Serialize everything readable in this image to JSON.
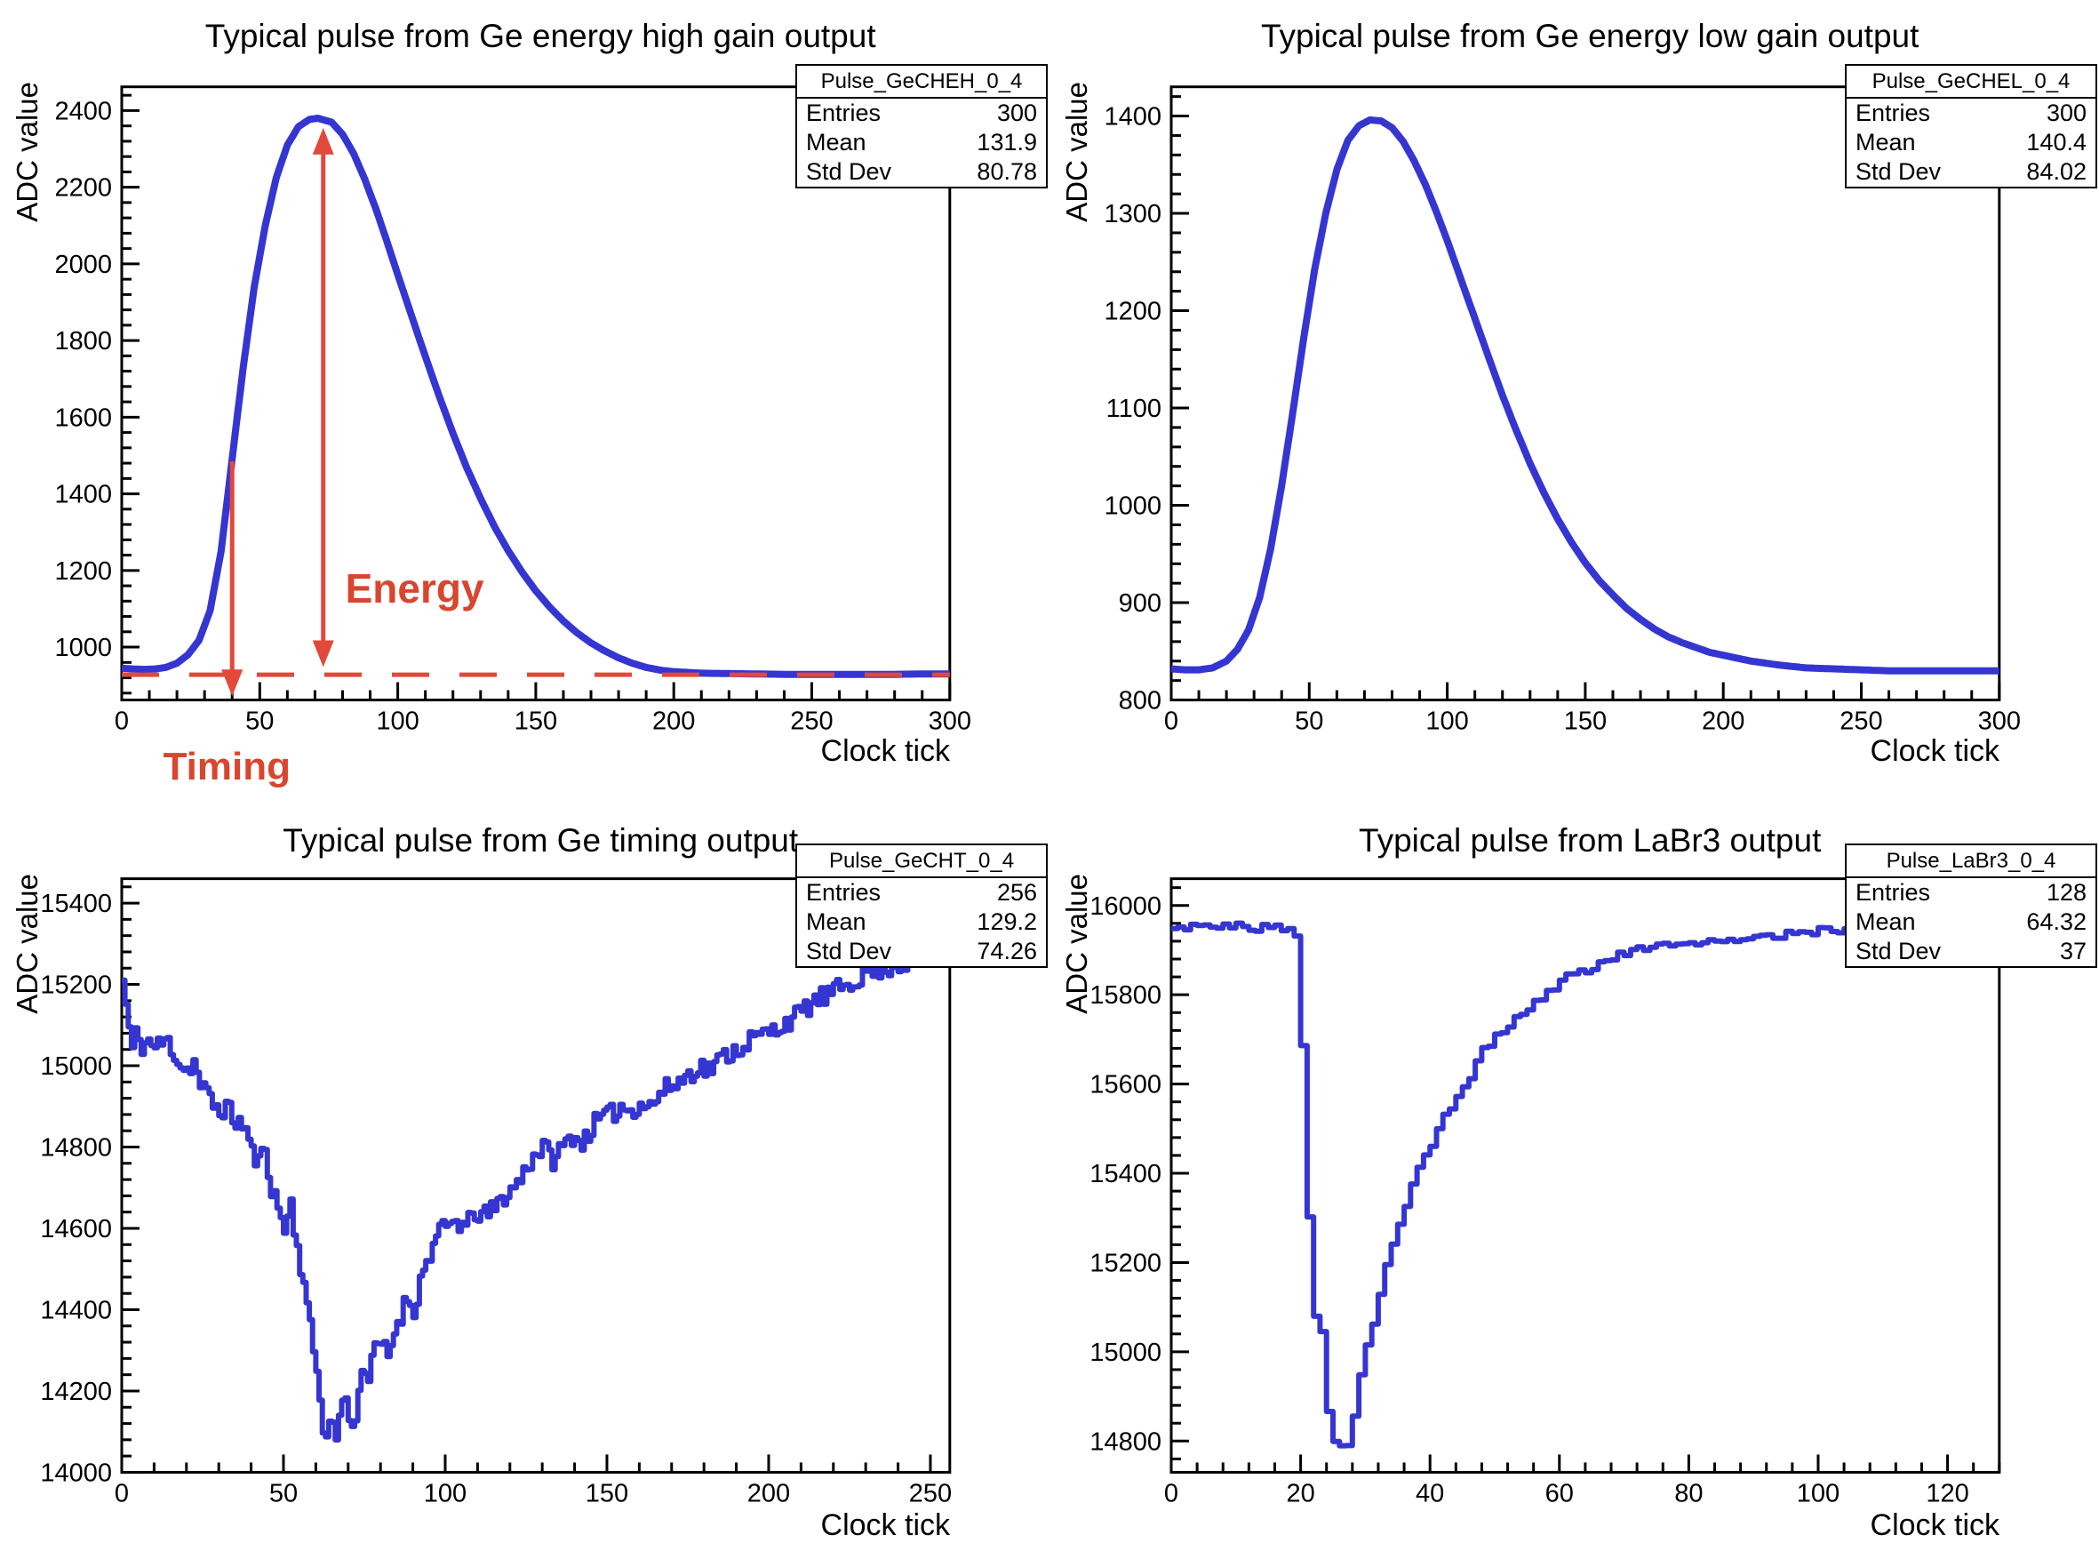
{
  "colors": {
    "curve_blue": "#3535d2",
    "annotation_red": "#d9452e",
    "arrow_red": "#e2493a",
    "axis_black": "#000000",
    "background": "#ffffff"
  },
  "chart_data": [
    {
      "id": "ge_energy_high_gain",
      "type": "line",
      "render": "smooth",
      "title": "Typical pulse from Ge energy high gain output",
      "xlabel": "Clock tick",
      "ylabel": "ADC value",
      "xlim": [
        0,
        300
      ],
      "ylim": [
        862,
        2462
      ],
      "xticks": [
        0,
        50,
        100,
        150,
        200,
        250,
        300
      ],
      "yticks": [
        1000,
        1200,
        1400,
        1600,
        1800,
        2000,
        2200,
        2400
      ],
      "x_minor_step": 10,
      "y_minor_step": 40,
      "n_samples": 300,
      "stats": {
        "name": "Pulse_GeCHEH_0_4",
        "rows": [
          {
            "label": "Entries",
            "value": "300"
          },
          {
            "label": "Mean",
            "value": "131.9"
          },
          {
            "label": "Std Dev",
            "value": "80.78"
          }
        ]
      },
      "points": [
        [
          0,
          945
        ],
        [
          4,
          943
        ],
        [
          8,
          942
        ],
        [
          12,
          943
        ],
        [
          16,
          947
        ],
        [
          20,
          958
        ],
        [
          24,
          980
        ],
        [
          28,
          1018
        ],
        [
          32,
          1095
        ],
        [
          36,
          1250
        ],
        [
          40,
          1490
        ],
        [
          44,
          1730
        ],
        [
          48,
          1940
        ],
        [
          52,
          2100
        ],
        [
          56,
          2225
        ],
        [
          60,
          2310
        ],
        [
          64,
          2358
        ],
        [
          68,
          2377
        ],
        [
          71,
          2380
        ],
        [
          76,
          2370
        ],
        [
          80,
          2338
        ],
        [
          84,
          2288
        ],
        [
          88,
          2222
        ],
        [
          92,
          2145
        ],
        [
          96,
          2060
        ],
        [
          100,
          1972
        ],
        [
          105,
          1865
        ],
        [
          110,
          1758
        ],
        [
          115,
          1655
        ],
        [
          120,
          1558
        ],
        [
          125,
          1468
        ],
        [
          130,
          1388
        ],
        [
          135,
          1315
        ],
        [
          140,
          1252
        ],
        [
          145,
          1196
        ],
        [
          150,
          1147
        ],
        [
          155,
          1105
        ],
        [
          160,
          1068
        ],
        [
          165,
          1037
        ],
        [
          170,
          1011
        ],
        [
          175,
          990
        ],
        [
          180,
          972
        ],
        [
          185,
          958
        ],
        [
          190,
          947
        ],
        [
          195,
          940
        ],
        [
          200,
          936
        ],
        [
          210,
          932
        ],
        [
          220,
          931
        ],
        [
          230,
          930
        ],
        [
          240,
          929
        ],
        [
          250,
          929
        ],
        [
          260,
          929
        ],
        [
          270,
          929
        ],
        [
          280,
          929
        ],
        [
          290,
          930
        ],
        [
          300,
          930
        ]
      ],
      "annotations": {
        "baseline": {
          "y": 928
        },
        "energy_arrow": {
          "x": 73,
          "tip_top": 2355,
          "tip_bottom": 948
        },
        "timing_arrow": {
          "x": 40,
          "top": 1485,
          "tip_bottom": 872
        },
        "energy_label": {
          "text": "Energy",
          "x": 81,
          "y": 1156
        },
        "timing_label": {
          "text": "Timing",
          "x": 15
        }
      }
    },
    {
      "id": "ge_energy_low_gain",
      "type": "line",
      "render": "smooth",
      "title": "Typical pulse from Ge energy low gain output",
      "xlabel": "Clock tick",
      "ylabel": "ADC value",
      "xlim": [
        0,
        300
      ],
      "ylim": [
        800,
        1430
      ],
      "xticks": [
        0,
        50,
        100,
        150,
        200,
        250,
        300
      ],
      "yticks": [
        800,
        900,
        1000,
        1100,
        1200,
        1300,
        1400
      ],
      "x_minor_step": 10,
      "y_minor_step": 20,
      "n_samples": 300,
      "stats": {
        "name": "Pulse_GeCHEL_0_4",
        "rows": [
          {
            "label": "Entries",
            "value": "300"
          },
          {
            "label": "Mean",
            "value": "140.4"
          },
          {
            "label": "Std Dev",
            "value": "84.02"
          }
        ]
      },
      "points": [
        [
          0,
          832
        ],
        [
          5,
          831
        ],
        [
          10,
          831
        ],
        [
          15,
          833
        ],
        [
          20,
          840
        ],
        [
          24,
          852
        ],
        [
          28,
          872
        ],
        [
          32,
          905
        ],
        [
          36,
          955
        ],
        [
          40,
          1020
        ],
        [
          44,
          1095
        ],
        [
          48,
          1172
        ],
        [
          52,
          1243
        ],
        [
          56,
          1300
        ],
        [
          60,
          1345
        ],
        [
          64,
          1375
        ],
        [
          68,
          1390
        ],
        [
          72,
          1396
        ],
        [
          76,
          1395
        ],
        [
          80,
          1388
        ],
        [
          84,
          1374
        ],
        [
          88,
          1354
        ],
        [
          92,
          1330
        ],
        [
          96,
          1302
        ],
        [
          100,
          1272
        ],
        [
          105,
          1232
        ],
        [
          110,
          1192
        ],
        [
          115,
          1152
        ],
        [
          120,
          1113
        ],
        [
          125,
          1077
        ],
        [
          130,
          1043
        ],
        [
          135,
          1013
        ],
        [
          140,
          986
        ],
        [
          145,
          962
        ],
        [
          150,
          941
        ],
        [
          155,
          923
        ],
        [
          160,
          908
        ],
        [
          165,
          894
        ],
        [
          170,
          883
        ],
        [
          175,
          873
        ],
        [
          180,
          865
        ],
        [
          185,
          859
        ],
        [
          190,
          854
        ],
        [
          195,
          849
        ],
        [
          200,
          846
        ],
        [
          210,
          840
        ],
        [
          220,
          836
        ],
        [
          230,
          833
        ],
        [
          240,
          832
        ],
        [
          250,
          831
        ],
        [
          260,
          830
        ],
        [
          270,
          830
        ],
        [
          280,
          830
        ],
        [
          290,
          830
        ],
        [
          300,
          830
        ]
      ],
      "annotations": null
    },
    {
      "id": "ge_timing",
      "type": "line",
      "render": "steps",
      "title": "Typical pulse from Ge timing output",
      "xlabel": "Clock tick",
      "ylabel": "ADC value",
      "xlim": [
        0,
        256
      ],
      "ylim": [
        14000,
        15460
      ],
      "xticks": [
        0,
        50,
        100,
        150,
        200,
        250
      ],
      "yticks": [
        14000,
        14200,
        14400,
        14600,
        14800,
        15000,
        15200,
        15400
      ],
      "x_minor_step": 10,
      "y_minor_step": 40,
      "n_samples": 256,
      "noise": {
        "amplitude": 26,
        "seed": 11
      },
      "stats": {
        "name": "Pulse_GeCHT_0_4",
        "rows": [
          {
            "label": "Entries",
            "value": "256"
          },
          {
            "label": "Mean",
            "value": "129.2"
          },
          {
            "label": "Std Dev",
            "value": "74.26"
          }
        ]
      },
      "points": [
        [
          0,
          15210
        ],
        [
          1,
          15150
        ],
        [
          2,
          15090
        ],
        [
          3,
          15040
        ],
        [
          4,
          15075
        ],
        [
          6,
          15050
        ],
        [
          8,
          15060
        ],
        [
          10,
          15045
        ],
        [
          12,
          15055
        ],
        [
          14,
          15060
        ],
        [
          16,
          15030
        ],
        [
          18,
          15000
        ],
        [
          20,
          14990
        ],
        [
          22,
          15010
        ],
        [
          24,
          14950
        ],
        [
          26,
          14930
        ],
        [
          28,
          14905
        ],
        [
          30,
          14890
        ],
        [
          32,
          14900
        ],
        [
          34,
          14870
        ],
        [
          36,
          14860
        ],
        [
          38,
          14845
        ],
        [
          40,
          14785
        ],
        [
          42,
          14760
        ],
        [
          44,
          14800
        ],
        [
          46,
          14700
        ],
        [
          48,
          14650
        ],
        [
          50,
          14600
        ],
        [
          52,
          14660
        ],
        [
          54,
          14550
        ],
        [
          56,
          14470
        ],
        [
          58,
          14350
        ],
        [
          60,
          14250
        ],
        [
          62,
          14120
        ],
        [
          63,
          14075
        ],
        [
          64,
          14130
        ],
        [
          66,
          14090
        ],
        [
          68,
          14185
        ],
        [
          70,
          14145
        ],
        [
          72,
          14120
        ],
        [
          74,
          14270
        ],
        [
          76,
          14230
        ],
        [
          78,
          14300
        ],
        [
          80,
          14320
        ],
        [
          82,
          14280
        ],
        [
          84,
          14350
        ],
        [
          86,
          14390
        ],
        [
          88,
          14430
        ],
        [
          90,
          14400
        ],
        [
          92,
          14470
        ],
        [
          94,
          14520
        ],
        [
          96,
          14560
        ],
        [
          98,
          14590
        ],
        [
          100,
          14600
        ],
        [
          103,
          14620
        ],
        [
          106,
          14600
        ],
        [
          109,
          14640
        ],
        [
          112,
          14630
        ],
        [
          115,
          14650
        ],
        [
          118,
          14680
        ],
        [
          121,
          14700
        ],
        [
          124,
          14740
        ],
        [
          127,
          14780
        ],
        [
          130,
          14800
        ],
        [
          133,
          14770
        ],
        [
          136,
          14800
        ],
        [
          139,
          14830
        ],
        [
          142,
          14810
        ],
        [
          145,
          14850
        ],
        [
          148,
          14870
        ],
        [
          151,
          14880
        ],
        [
          154,
          14900
        ],
        [
          157,
          14890
        ],
        [
          160,
          14910
        ],
        [
          163,
          14900
        ],
        [
          166,
          14930
        ],
        [
          169,
          14950
        ],
        [
          172,
          14960
        ],
        [
          175,
          14980
        ],
        [
          178,
          15000
        ],
        [
          181,
          14990
        ],
        [
          184,
          15010
        ],
        [
          187,
          15030
        ],
        [
          190,
          15040
        ],
        [
          193,
          15060
        ],
        [
          196,
          15070
        ],
        [
          199,
          15080
        ],
        [
          202,
          15090
        ],
        [
          205,
          15110
        ],
        [
          208,
          15120
        ],
        [
          211,
          15140
        ],
        [
          214,
          15160
        ],
        [
          217,
          15170
        ],
        [
          220,
          15180
        ],
        [
          223,
          15200
        ],
        [
          226,
          15210
        ],
        [
          230,
          15230
        ],
        [
          235,
          15240
        ],
        [
          240,
          15250
        ],
        [
          245,
          15260
        ],
        [
          250,
          15270
        ],
        [
          255,
          15280
        ]
      ],
      "annotations": null
    },
    {
      "id": "labr3",
      "type": "line",
      "render": "steps",
      "title": "Typical pulse from LaBr3 output",
      "xlabel": "Clock tick",
      "ylabel": "ADC value",
      "xlim": [
        0,
        128
      ],
      "ylim": [
        14730,
        16060
      ],
      "xticks": [
        0,
        20,
        40,
        60,
        80,
        100,
        120
      ],
      "yticks": [
        14800,
        15000,
        15200,
        15400,
        15600,
        15800,
        16000
      ],
      "x_minor_step": 4,
      "y_minor_step": 40,
      "n_samples": 128,
      "noise": {
        "amplitude": 8,
        "seed": 5
      },
      "stats": {
        "name": "Pulse_LaBr3_0_4",
        "rows": [
          {
            "label": "Entries",
            "value": "128"
          },
          {
            "label": "Mean",
            "value": "64.32"
          },
          {
            "label": "Std Dev",
            "value": "37"
          }
        ]
      },
      "points": [
        [
          0,
          15945
        ],
        [
          2,
          15950
        ],
        [
          4,
          15962
        ],
        [
          6,
          15948
        ],
        [
          8,
          15952
        ],
        [
          10,
          15956
        ],
        [
          12,
          15942
        ],
        [
          14,
          15958
        ],
        [
          16,
          15950
        ],
        [
          18,
          15944
        ],
        [
          19,
          15928
        ],
        [
          20,
          15690
        ],
        [
          21,
          15310
        ],
        [
          22,
          15075
        ],
        [
          23,
          15050
        ],
        [
          24,
          14870
        ],
        [
          25,
          14805
        ],
        [
          26,
          14790
        ],
        [
          27,
          14782
        ],
        [
          28,
          14860
        ],
        [
          29,
          14955
        ],
        [
          30,
          15010
        ],
        [
          31,
          15065
        ],
        [
          32,
          15130
        ],
        [
          34,
          15245
        ],
        [
          36,
          15330
        ],
        [
          38,
          15410
        ],
        [
          40,
          15460
        ],
        [
          42,
          15530
        ],
        [
          44,
          15570
        ],
        [
          46,
          15615
        ],
        [
          48,
          15680
        ],
        [
          50,
          15705
        ],
        [
          52,
          15730
        ],
        [
          54,
          15760
        ],
        [
          56,
          15782
        ],
        [
          58,
          15802
        ],
        [
          60,
          15835
        ],
        [
          62,
          15850
        ],
        [
          64,
          15856
        ],
        [
          66,
          15870
        ],
        [
          68,
          15882
        ],
        [
          70,
          15895
        ],
        [
          72,
          15900
        ],
        [
          74,
          15906
        ],
        [
          76,
          15910
        ],
        [
          78,
          15906
        ],
        [
          80,
          15916
        ],
        [
          82,
          15920
        ],
        [
          84,
          15926
        ],
        [
          86,
          15920
        ],
        [
          88,
          15930
        ],
        [
          90,
          15926
        ],
        [
          92,
          15936
        ],
        [
          94,
          15930
        ],
        [
          96,
          15940
        ],
        [
          98,
          15936
        ],
        [
          100,
          15946
        ],
        [
          102,
          15940
        ],
        [
          104,
          15950
        ],
        [
          106,
          15946
        ],
        [
          108,
          15950
        ],
        [
          110,
          15954
        ],
        [
          112,
          15946
        ],
        [
          114,
          15950
        ],
        [
          116,
          15954
        ],
        [
          118,
          15946
        ],
        [
          120,
          15950
        ],
        [
          122,
          15954
        ],
        [
          124,
          15950
        ],
        [
          126,
          15954
        ],
        [
          128,
          15950
        ]
      ],
      "annotations": null
    }
  ]
}
